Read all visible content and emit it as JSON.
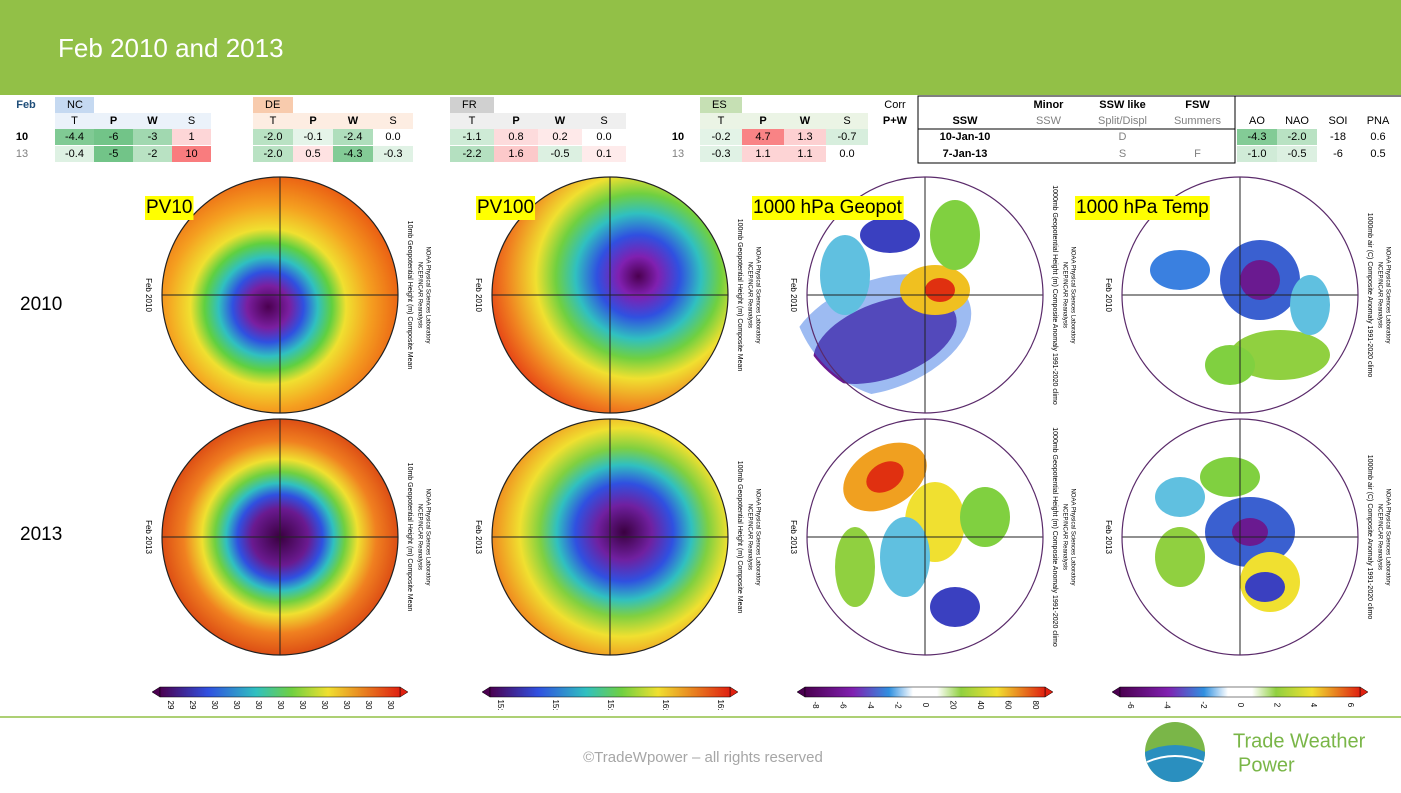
{
  "header": {
    "title": "Feb 2010 and 2013"
  },
  "tables": {
    "row_label_title": "Feb",
    "row_labels": [
      "10",
      "13"
    ],
    "groups": [
      {
        "name": "NC",
        "header_color": "#c5d9f1",
        "columns": [
          "T",
          "P",
          "W",
          "S"
        ],
        "rows": [
          [
            "-4.4",
            "-6",
            "-3",
            "1"
          ],
          [
            "-0.4",
            "-5",
            "-2",
            "10"
          ]
        ]
      },
      {
        "name": "DE",
        "header_color": "#f8cbad",
        "columns": [
          "T",
          "P",
          "W",
          "S"
        ],
        "rows": [
          [
            "-2.0",
            "-0.1",
            "-2.4",
            "0.0"
          ],
          [
            "-2.0",
            "0.5",
            "-4.3",
            "-0.3"
          ]
        ]
      },
      {
        "name": "FR",
        "header_color": "#d0d0d0",
        "columns": [
          "T",
          "P",
          "W",
          "S"
        ],
        "rows": [
          [
            "-1.1",
            "0.8",
            "0.2",
            "0.0"
          ],
          [
            "-2.2",
            "1.6",
            "-0.5",
            "0.1"
          ]
        ]
      },
      {
        "name": "ES",
        "header_color": "#c6e0b4",
        "columns": [
          "T",
          "P",
          "W",
          "S"
        ],
        "rows": [
          [
            "-0.2",
            "4.7",
            "1.3",
            "-0.7"
          ],
          [
            "-0.3",
            "1.1",
            "1.1",
            "0.0"
          ]
        ]
      }
    ],
    "corr": [
      "Corr",
      "P+W"
    ],
    "events": {
      "columns": [
        {
          "title": "SSW"
        },
        {
          "title": "Minor",
          "subtitle": "SSW"
        },
        {
          "title": "SSW like",
          "subtitle": "Split/Displ"
        },
        {
          "title": "FSW",
          "subtitle": "Summers"
        }
      ],
      "rows": [
        {
          "date": "10-Jan-10",
          "ssw_like": "D"
        },
        {
          "date": "7-Jan-13",
          "ssw_like": "S",
          "fsw": "F"
        }
      ]
    },
    "indices": {
      "columns": [
        "AO",
        "NAO",
        "SOI",
        "PNA"
      ],
      "rows": [
        [
          "-4.3",
          "-2.0",
          "-18",
          "0.6"
        ],
        [
          "-1.0",
          "-0.5",
          "-6",
          "0.5"
        ]
      ]
    }
  },
  "maps": {
    "rows": [
      {
        "label": "2010",
        "date": "Feb 2010"
      },
      {
        "label": "2013",
        "date": "Feb 2013"
      }
    ],
    "source": [
      "NCEP/NCAR Reanalysis",
      "NOAA Physical Sciences Laboratory"
    ],
    "columns": [
      {
        "label": "PV10",
        "caption": "10mb Geopotential Height (m) Composite Mean",
        "colorbar": [
          "29",
          "29",
          "30",
          "30",
          "30",
          "30",
          "30",
          "30",
          "30",
          "30",
          "30"
        ]
      },
      {
        "label": "PV100",
        "caption": "100mb Geopotential Height (m) Composite Mean",
        "colorbar": [
          "15:",
          "15:",
          "15:",
          "16:",
          "16:"
        ]
      },
      {
        "label": "1000 hPa Geopot",
        "caption": "1000mb Geopotential Height (m) Composite Anomaly 1991-2020 climo",
        "colorbar": [
          "-8",
          "-6",
          "-4",
          "-2",
          "0",
          "20",
          "40",
          "60",
          "80"
        ]
      },
      {
        "label": "1000 hPa Temp",
        "caption": "1000mb air (C) Composite Anomaly 1991-2020 climo",
        "colorbar": [
          "-6",
          "-4",
          "-2",
          "0",
          "2",
          "4",
          "6"
        ]
      }
    ]
  },
  "footer": {
    "copyright": "©TradeWpower – all rights reserved",
    "brand": [
      "Trade Weather",
      "Power"
    ]
  }
}
